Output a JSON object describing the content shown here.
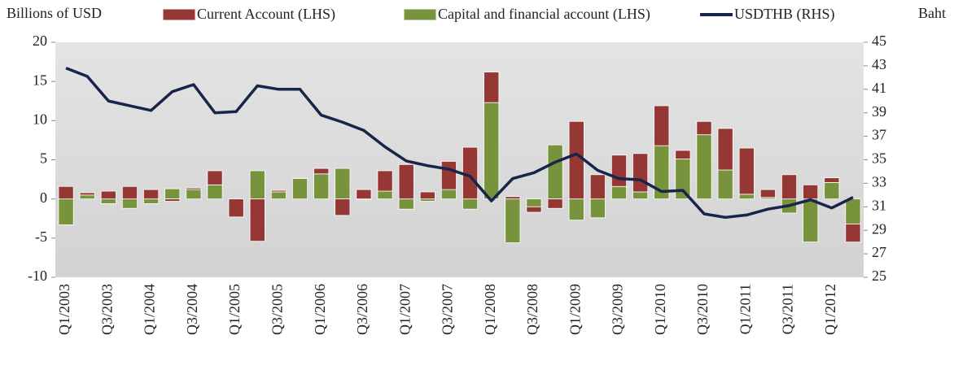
{
  "chart_data": {
    "type": "bar",
    "stacked": true,
    "y_label": "Billions of USD",
    "y2_label": "Baht",
    "categories": [
      "Q1/2003",
      null,
      "Q3/2003",
      null,
      "Q1/2004",
      null,
      "Q3/2004",
      null,
      "Q1/2005",
      null,
      "Q3/2005",
      null,
      "Q1/2006",
      null,
      "Q3/2006",
      null,
      "Q1/2007",
      null,
      "Q3/2007",
      null,
      "Q1/2008",
      null,
      "Q3/2008",
      null,
      "Q1/2009",
      null,
      "Q3/2009",
      null,
      "Q1/2010",
      null,
      "Q3/2010",
      null,
      "Q1/2011",
      null,
      "Q3/2011",
      null,
      "Q1/2012",
      null
    ],
    "series": [
      {
        "name": "Current Account (LHS)",
        "type": "bar",
        "color": "#953735",
        "values": [
          1.6,
          0.3,
          1.0,
          1.6,
          1.2,
          -0.3,
          0.2,
          1.8,
          -2.3,
          -5.4,
          0.2,
          0,
          0.7,
          -2.1,
          1.2,
          2.6,
          4.4,
          0.9,
          3.6,
          6.6,
          3.9,
          0.3,
          -0.7,
          -1.2,
          9.9,
          3.1,
          4.0,
          4.9,
          5.1,
          1.1,
          1.7,
          5.3,
          5.9,
          1.0,
          3.1,
          1.8,
          0.6,
          -2.3
        ]
      },
      {
        "name": "Capital and financial account (LHS)",
        "type": "bar",
        "color": "#77933c",
        "values": [
          -3.3,
          0.5,
          -0.6,
          -1.2,
          -0.6,
          1.3,
          1.2,
          1.8,
          0,
          3.6,
          0.9,
          2.6,
          3.2,
          3.9,
          -0.1,
          1.0,
          -1.3,
          -0.3,
          1.2,
          -1.3,
          12.3,
          -5.6,
          -1.0,
          6.9,
          -2.7,
          -2.4,
          1.6,
          0.9,
          6.8,
          5.1,
          8.2,
          3.7,
          0.6,
          0.2,
          -1.8,
          -5.5,
          2.1,
          -3.2
        ]
      },
      {
        "name": "USDTHB (RHS)",
        "type": "line",
        "axis": "y2",
        "color": "#17254a",
        "values": [
          42.8,
          42.1,
          40.0,
          39.6,
          39.2,
          40.8,
          41.4,
          39.0,
          39.1,
          41.3,
          41.0,
          41.0,
          38.8,
          38.2,
          37.5,
          36.1,
          34.9,
          34.5,
          34.2,
          33.6,
          31.5,
          33.4,
          33.9,
          34.8,
          35.5,
          34.1,
          33.4,
          33.3,
          32.3,
          32.4,
          30.4,
          30.1,
          30.3,
          30.8,
          31.1,
          31.6,
          30.9,
          31.8
        ]
      }
    ],
    "ylim": [
      -10,
      20
    ],
    "yticks": [
      -10,
      -5,
      0,
      5,
      10,
      15,
      20
    ],
    "y2lim": [
      25,
      45
    ],
    "y2ticks": [
      25,
      27,
      29,
      31,
      33,
      35,
      37,
      39,
      41,
      43,
      45
    ]
  }
}
